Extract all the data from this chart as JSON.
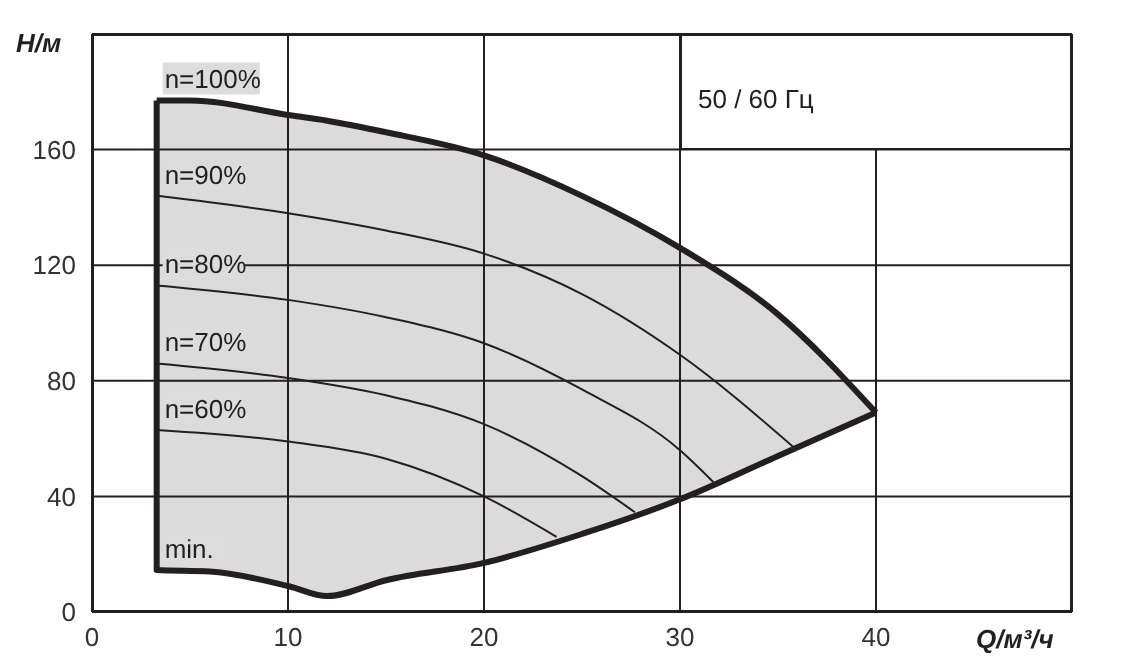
{
  "chart_data": {
    "type": "line",
    "subtitle": "50 / 60 Гц",
    "xlabel": "Q/м³/ч",
    "ylabel": "H/м",
    "xlim": [
      0,
      50
    ],
    "ylim": [
      0,
      200
    ],
    "xticks": [
      0,
      10,
      20,
      30,
      40
    ],
    "yticks": [
      0,
      40,
      80,
      120,
      160
    ],
    "grid": true,
    "marker": "none",
    "line_style": "solid",
    "series": [
      {
        "name": "n=100%",
        "color": "#231f20",
        "x": [
          3.3,
          5,
          10,
          12,
          15,
          20,
          25,
          30,
          35,
          40
        ],
        "values": [
          177,
          177,
          172,
          170,
          166,
          158,
          144,
          126,
          103,
          69
        ],
        "lower": [
          14.5,
          14,
          9,
          5.5,
          11,
          17,
          27,
          39,
          54,
          69
        ],
        "upper": [
          177,
          177,
          172,
          170,
          166,
          158,
          144,
          126,
          103,
          69
        ]
      },
      {
        "name": "n=90%",
        "color": "#231f20",
        "x": [
          3.3,
          10,
          15,
          20,
          25,
          30,
          35.8
        ],
        "values": [
          144,
          138,
          132,
          124,
          110,
          89,
          57
        ]
      },
      {
        "name": "n=80%",
        "color": "#231f20",
        "x": [
          3.3,
          10,
          15,
          20,
          25,
          30,
          31.7
        ],
        "values": [
          113,
          108,
          102,
          93,
          77,
          56,
          45
        ]
      },
      {
        "name": "n=70%",
        "color": "#231f20",
        "x": [
          3.3,
          10,
          15,
          20,
          25,
          27.7
        ],
        "values": [
          86,
          81,
          75,
          65,
          47,
          34.5
        ]
      },
      {
        "name": "n=60%",
        "color": "#231f20",
        "x": [
          3.3,
          10,
          15,
          20,
          23.7
        ],
        "values": [
          63,
          59,
          53,
          40,
          26
        ]
      },
      {
        "name": "min.",
        "color": "#231f20",
        "x": [
          3.3,
          3.3,
          6,
          10,
          12,
          15,
          20,
          25,
          30,
          35,
          40
        ],
        "values": [
          177,
          14.5,
          14,
          9,
          5.5,
          11,
          17,
          27,
          39,
          54,
          69
        ]
      }
    ]
  }
}
